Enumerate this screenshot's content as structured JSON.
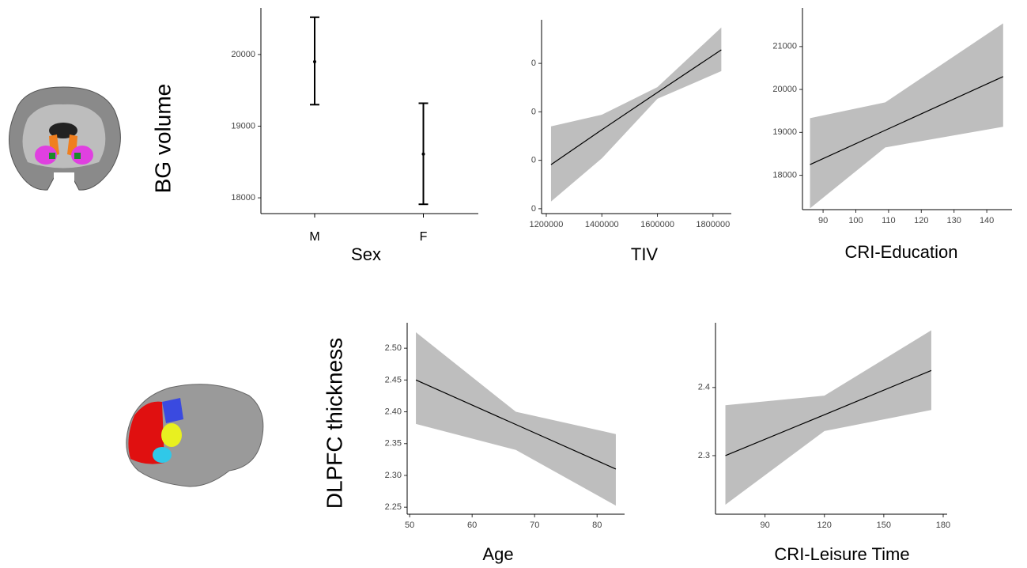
{
  "chart_data": [
    {
      "type": "errorbar",
      "ylabel": "BG volume",
      "xlabel": "Sex",
      "categories": [
        "M",
        "F"
      ],
      "values": [
        19900,
        18610
      ],
      "lower": [
        19300,
        17910
      ],
      "upper": [
        20520,
        19320
      ],
      "ylim": [
        17780,
        20650
      ],
      "yticks": [
        18000,
        19000,
        20000
      ],
      "color": "#000000"
    },
    {
      "type": "line",
      "xlabel": "TIV",
      "series": [
        {
          "x": [
            1217000,
            1400000,
            1600000,
            1830000
          ],
          "values": [
            18910,
            19630,
            20400,
            21280
          ],
          "lower": [
            18150,
            19040,
            20270,
            20840
          ],
          "upper": [
            19700,
            19940,
            20510,
            21740
          ],
          "color": "#000000",
          "band_color": "#bebebe"
        }
      ],
      "xlim": [
        1183000,
        1866000
      ],
      "xticks": [
        1200000,
        1400000,
        1600000,
        1800000
      ],
      "ylim": [
        17900,
        21900
      ],
      "yticks": [
        {
          "value": 18000,
          "label": "0"
        },
        {
          "value": 19000,
          "label": "0"
        },
        {
          "value": 20000,
          "label": "0"
        },
        {
          "value": 21000,
          "label": "0"
        }
      ]
    },
    {
      "type": "line",
      "xlabel": "CRI-Education",
      "series": [
        {
          "x": [
            86,
            109,
            145
          ],
          "values": [
            18250,
            19050,
            20300
          ],
          "lower": [
            17230,
            18650,
            19130
          ],
          "upper": [
            19330,
            19700,
            21540
          ],
          "color": "#000000",
          "band_color": "#bebebe"
        }
      ],
      "xlim": [
        83.7,
        147.7
      ],
      "xticks": [
        90,
        100,
        110,
        120,
        130,
        140
      ],
      "ylim": [
        17200,
        21900
      ],
      "yticks": [
        18000,
        19000,
        20000,
        21000
      ]
    },
    {
      "type": "line",
      "ylabel": "DLPFC thickness",
      "xlabel": "Age",
      "series": [
        {
          "x": [
            51,
            67,
            83
          ],
          "values": [
            2.45,
            2.38,
            2.31
          ],
          "lower": [
            2.381,
            2.34,
            2.2525
          ],
          "upper": [
            2.525,
            2.4,
            2.365
          ],
          "color": "#000000",
          "band_color": "#bebebe"
        }
      ],
      "xlim": [
        49.6,
        84.4
      ],
      "xticks": [
        50,
        60,
        70,
        80
      ],
      "ylim": [
        2.239,
        2.54
      ],
      "yticks": [
        2.25,
        {
          "value": 2.3,
          "label": "2.30"
        },
        2.35,
        {
          "value": 2.4,
          "label": "2.40"
        },
        2.45,
        {
          "value": 2.5,
          "label": "2.50"
        }
      ]
    },
    {
      "type": "line",
      "xlabel": "CRI-Leisure Time",
      "series": [
        {
          "x": [
            70,
            120,
            174
          ],
          "values": [
            2.3,
            2.36,
            2.425
          ],
          "lower": [
            2.228,
            2.336,
            2.367
          ],
          "upper": [
            2.374,
            2.388,
            2.484
          ],
          "color": "#000000",
          "band_color": "#bebebe"
        }
      ],
      "xlim": [
        65,
        182
      ],
      "xticks": [
        90,
        120,
        150,
        180
      ],
      "ylim": [
        2.214,
        2.495
      ],
      "yticks": [
        2.3,
        2.4
      ]
    }
  ]
}
